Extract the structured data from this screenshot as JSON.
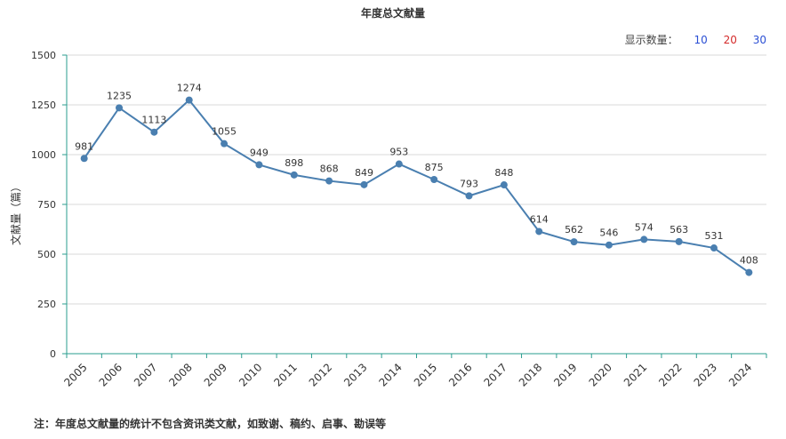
{
  "header": {
    "count_label": "显示数量：",
    "count_options": [
      "10",
      "20",
      "30"
    ]
  },
  "footnote": "注：年度总文献量的统计不包含资讯类文献，如致谢、稿约、启事、勘误等",
  "chart_data": {
    "type": "line",
    "title": "年度总文献量",
    "xlabel": "",
    "ylabel": "文献量（篇）",
    "categories": [
      "2005",
      "2006",
      "2007",
      "2008",
      "2009",
      "2010",
      "2011",
      "2012",
      "2013",
      "2014",
      "2015",
      "2016",
      "2017",
      "2018",
      "2019",
      "2020",
      "2021",
      "2022",
      "2023",
      "2024"
    ],
    "series": [
      {
        "values": [
          981,
          1235,
          1113,
          1274,
          1055,
          949,
          898,
          868,
          849,
          953,
          875,
          793,
          848,
          614,
          562,
          546,
          574,
          563,
          531,
          408
        ]
      }
    ],
    "ylim": [
      0,
      1500
    ],
    "yticks": [
      "0",
      "250",
      "500",
      "750",
      "1000",
      "1250",
      "1500"
    ],
    "grid": true,
    "line_color": "#4a7fb0"
  }
}
